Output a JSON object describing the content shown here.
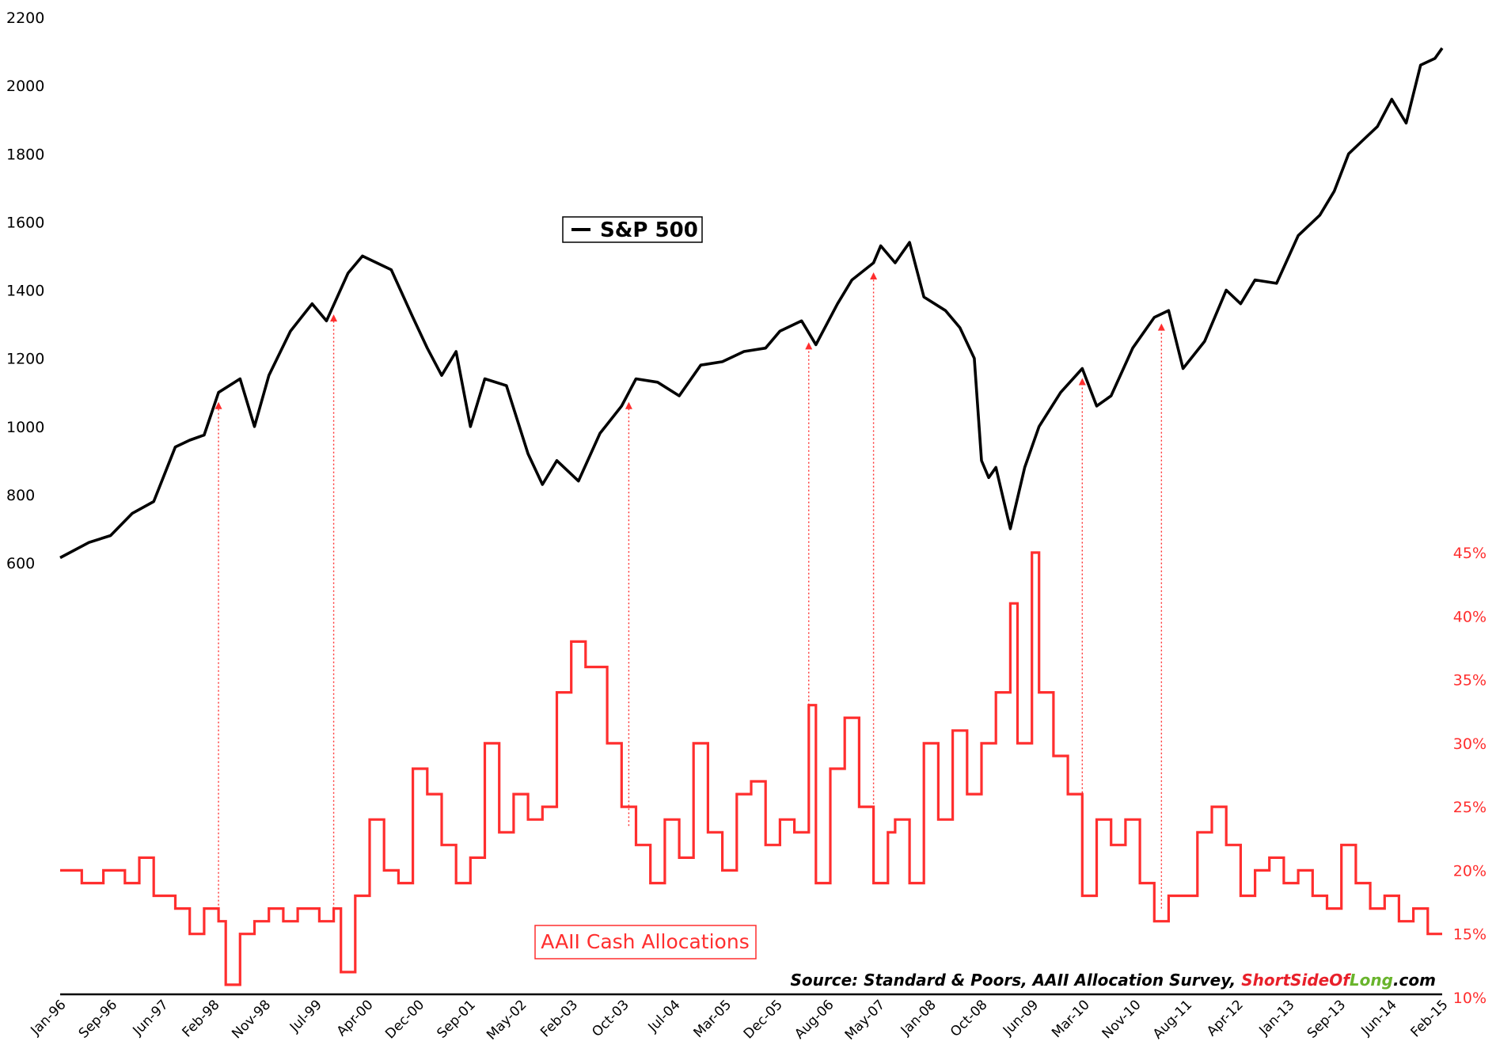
{
  "chart_data": {
    "type": "line",
    "title": "",
    "x_ticks": [
      "Jan-96",
      "Sep-96",
      "Jun-97",
      "Feb-98",
      "Nov-98",
      "Jul-99",
      "Apr-00",
      "Dec-00",
      "Sep-01",
      "May-02",
      "Feb-03",
      "Oct-03",
      "Jul-04",
      "Mar-05",
      "Dec-05",
      "Aug-06",
      "May-07",
      "Jan-08",
      "Oct-08",
      "Jun-09",
      "Mar-10",
      "Nov-10",
      "Aug-11",
      "Apr-12",
      "Jan-13",
      "Sep-13",
      "Jun-14",
      "Feb-15"
    ],
    "y_left": {
      "ticks": [
        "2200",
        "2000",
        "1800",
        "1600",
        "1400",
        "1200",
        "1000",
        "800",
        "600"
      ],
      "ylim": [
        600,
        2200
      ]
    },
    "y_right": {
      "ticks": [
        "45%",
        "40%",
        "35%",
        "30%",
        "25%",
        "20%",
        "15%",
        "10%"
      ],
      "ylim": [
        10,
        45
      ]
    },
    "series": [
      {
        "name": "S&P 500",
        "axis": "left",
        "color": "#000000",
        "points": [
          [
            1996.0,
            615
          ],
          [
            1996.4,
            660
          ],
          [
            1996.7,
            680
          ],
          [
            1997.0,
            745
          ],
          [
            1997.3,
            780
          ],
          [
            1997.6,
            940
          ],
          [
            1997.8,
            960
          ],
          [
            1998.0,
            975
          ],
          [
            1998.2,
            1100
          ],
          [
            1998.5,
            1140
          ],
          [
            1998.7,
            1000
          ],
          [
            1998.9,
            1150
          ],
          [
            1999.2,
            1280
          ],
          [
            1999.5,
            1360
          ],
          [
            1999.7,
            1310
          ],
          [
            2000.0,
            1450
          ],
          [
            2000.2,
            1500
          ],
          [
            2000.6,
            1460
          ],
          [
            2000.9,
            1320
          ],
          [
            2001.1,
            1230
          ],
          [
            2001.3,
            1150
          ],
          [
            2001.5,
            1220
          ],
          [
            2001.7,
            1000
          ],
          [
            2001.9,
            1140
          ],
          [
            2002.2,
            1120
          ],
          [
            2002.5,
            920
          ],
          [
            2002.7,
            830
          ],
          [
            2002.9,
            900
          ],
          [
            2003.2,
            840
          ],
          [
            2003.5,
            980
          ],
          [
            2003.8,
            1060
          ],
          [
            2004.0,
            1140
          ],
          [
            2004.3,
            1130
          ],
          [
            2004.6,
            1090
          ],
          [
            2004.9,
            1180
          ],
          [
            2005.2,
            1190
          ],
          [
            2005.5,
            1220
          ],
          [
            2005.8,
            1230
          ],
          [
            2006.0,
            1280
          ],
          [
            2006.3,
            1310
          ],
          [
            2006.5,
            1240
          ],
          [
            2006.8,
            1360
          ],
          [
            2007.0,
            1430
          ],
          [
            2007.3,
            1480
          ],
          [
            2007.4,
            1530
          ],
          [
            2007.6,
            1480
          ],
          [
            2007.8,
            1540
          ],
          [
            2008.0,
            1380
          ],
          [
            2008.3,
            1340
          ],
          [
            2008.5,
            1290
          ],
          [
            2008.7,
            1200
          ],
          [
            2008.8,
            900
          ],
          [
            2008.9,
            850
          ],
          [
            2009.0,
            880
          ],
          [
            2009.2,
            700
          ],
          [
            2009.4,
            880
          ],
          [
            2009.6,
            1000
          ],
          [
            2009.9,
            1100
          ],
          [
            2010.2,
            1170
          ],
          [
            2010.4,
            1060
          ],
          [
            2010.6,
            1090
          ],
          [
            2010.9,
            1230
          ],
          [
            2011.2,
            1320
          ],
          [
            2011.4,
            1340
          ],
          [
            2011.6,
            1170
          ],
          [
            2011.9,
            1250
          ],
          [
            2012.2,
            1400
          ],
          [
            2012.4,
            1360
          ],
          [
            2012.6,
            1430
          ],
          [
            2012.9,
            1420
          ],
          [
            2013.2,
            1560
          ],
          [
            2013.5,
            1620
          ],
          [
            2013.7,
            1690
          ],
          [
            2013.9,
            1800
          ],
          [
            2014.1,
            1840
          ],
          [
            2014.3,
            1880
          ],
          [
            2014.5,
            1960
          ],
          [
            2014.7,
            1890
          ],
          [
            2014.9,
            2060
          ],
          [
            2015.1,
            2080
          ],
          [
            2015.2,
            2110
          ]
        ]
      },
      {
        "name": "AAII Cash Allocations",
        "axis": "right",
        "unit": "%",
        "color": "#ff2e2e",
        "points": [
          [
            1996.0,
            20
          ],
          [
            1996.3,
            19
          ],
          [
            1996.6,
            20
          ],
          [
            1996.9,
            19
          ],
          [
            1997.1,
            21
          ],
          [
            1997.3,
            18
          ],
          [
            1997.6,
            17
          ],
          [
            1997.8,
            15
          ],
          [
            1998.0,
            17
          ],
          [
            1998.2,
            16
          ],
          [
            1998.3,
            11
          ],
          [
            1998.5,
            15
          ],
          [
            1998.7,
            16
          ],
          [
            1998.9,
            17
          ],
          [
            1999.1,
            16
          ],
          [
            1999.3,
            17
          ],
          [
            1999.6,
            16
          ],
          [
            1999.8,
            17
          ],
          [
            1999.9,
            12
          ],
          [
            2000.1,
            18
          ],
          [
            2000.3,
            24
          ],
          [
            2000.5,
            20
          ],
          [
            2000.7,
            19
          ],
          [
            2000.9,
            28
          ],
          [
            2001.1,
            26
          ],
          [
            2001.3,
            22
          ],
          [
            2001.5,
            19
          ],
          [
            2001.7,
            21
          ],
          [
            2001.9,
            30
          ],
          [
            2002.1,
            23
          ],
          [
            2002.3,
            26
          ],
          [
            2002.5,
            24
          ],
          [
            2002.7,
            25
          ],
          [
            2002.9,
            34
          ],
          [
            2003.1,
            38
          ],
          [
            2003.3,
            36
          ],
          [
            2003.6,
            30
          ],
          [
            2003.8,
            25
          ],
          [
            2004.0,
            22
          ],
          [
            2004.2,
            19
          ],
          [
            2004.4,
            24
          ],
          [
            2004.6,
            21
          ],
          [
            2004.8,
            30
          ],
          [
            2005.0,
            23
          ],
          [
            2005.2,
            20
          ],
          [
            2005.4,
            26
          ],
          [
            2005.6,
            27
          ],
          [
            2005.8,
            22
          ],
          [
            2006.0,
            24
          ],
          [
            2006.2,
            23
          ],
          [
            2006.4,
            33
          ],
          [
            2006.5,
            19
          ],
          [
            2006.7,
            28
          ],
          [
            2006.9,
            32
          ],
          [
            2007.1,
            25
          ],
          [
            2007.3,
            19
          ],
          [
            2007.5,
            23
          ],
          [
            2007.6,
            24
          ],
          [
            2007.8,
            19
          ],
          [
            2008.0,
            30
          ],
          [
            2008.2,
            24
          ],
          [
            2008.4,
            31
          ],
          [
            2008.6,
            26
          ],
          [
            2008.8,
            30
          ],
          [
            2009.0,
            34
          ],
          [
            2009.2,
            41
          ],
          [
            2009.3,
            30
          ],
          [
            2009.5,
            45
          ],
          [
            2009.6,
            34
          ],
          [
            2009.8,
            29
          ],
          [
            2010.0,
            26
          ],
          [
            2010.2,
            18
          ],
          [
            2010.4,
            24
          ],
          [
            2010.6,
            22
          ],
          [
            2010.8,
            24
          ],
          [
            2011.0,
            19
          ],
          [
            2011.2,
            16
          ],
          [
            2011.4,
            18
          ],
          [
            2011.6,
            18
          ],
          [
            2011.8,
            23
          ],
          [
            2012.0,
            25
          ],
          [
            2012.2,
            22
          ],
          [
            2012.4,
            18
          ],
          [
            2012.6,
            20
          ],
          [
            2012.8,
            21
          ],
          [
            2013.0,
            19
          ],
          [
            2013.2,
            20
          ],
          [
            2013.4,
            18
          ],
          [
            2013.6,
            17
          ],
          [
            2013.8,
            22
          ],
          [
            2014.0,
            19
          ],
          [
            2014.2,
            17
          ],
          [
            2014.4,
            18
          ],
          [
            2014.6,
            16
          ],
          [
            2014.8,
            17
          ],
          [
            2015.0,
            15
          ],
          [
            2015.2,
            15
          ]
        ]
      }
    ],
    "annotations": [
      {
        "type": "dotted-arrow",
        "x": 1998.2
      },
      {
        "type": "dotted-arrow",
        "x": 1999.8
      },
      {
        "type": "dotted-arrow",
        "x": 2003.9
      },
      {
        "type": "dotted-arrow",
        "x": 2006.4
      },
      {
        "type": "dotted-arrow",
        "x": 2007.3
      },
      {
        "type": "dotted-arrow",
        "x": 2010.2
      },
      {
        "type": "dotted-arrow",
        "x": 2011.3
      }
    ],
    "legend": [
      {
        "label": "S&P 500",
        "color": "#000000",
        "placement": "upper-center"
      },
      {
        "label": "AAII Cash Allocations",
        "color": "#ff2e2e",
        "placement": "lower-left"
      }
    ],
    "source": {
      "prefix": "Source: Standard & Poors, AAII Allocation Survey, ",
      "brand_short": "ShortSide",
      "brand_of": "Of",
      "brand_long": "Long",
      "brand_suffix": ".com"
    },
    "colors": {
      "sp500": "#000000",
      "aaii": "#ff2e2e",
      "brand_red": "#e8202a",
      "brand_green": "#69b42c"
    }
  }
}
